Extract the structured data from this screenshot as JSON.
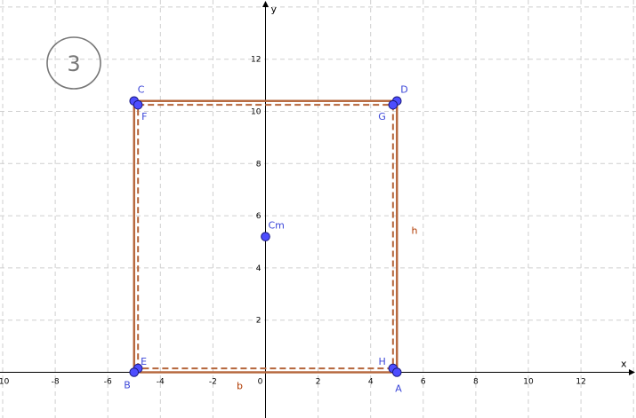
{
  "step_label": "3",
  "axes": {
    "x_label": "x",
    "y_label": "y",
    "x_ticks": [
      "-10",
      "-8",
      "-6",
      "-4",
      "-2",
      "0",
      "2",
      "4",
      "6",
      "8",
      "10",
      "12"
    ],
    "y_ticks": [
      "2",
      "4",
      "6",
      "8",
      "10",
      "12"
    ]
  },
  "colors": {
    "rect_stroke": "#b5653a",
    "point_fill": "#4d4dff",
    "point_label": "#3b46d8",
    "segment_label": "#b03a00"
  },
  "outer_rect": {
    "x": [
      -5,
      5
    ],
    "y": [
      0,
      10.4
    ]
  },
  "inner_rect": {
    "x": [
      -4.85,
      4.85
    ],
    "y": [
      0.15,
      10.25
    ]
  },
  "points": [
    {
      "name": "C",
      "x": -5,
      "y": 10.4
    },
    {
      "name": "F",
      "x": -4.85,
      "y": 10.25
    },
    {
      "name": "D",
      "x": 5,
      "y": 10.4
    },
    {
      "name": "G",
      "x": 4.85,
      "y": 10.25
    },
    {
      "name": "E",
      "x": -4.85,
      "y": 0.15
    },
    {
      "name": "B",
      "x": -5,
      "y": 0
    },
    {
      "name": "H",
      "x": 4.85,
      "y": 0.15
    },
    {
      "name": "A",
      "x": 5,
      "y": 0
    },
    {
      "name": "Cm",
      "x": 0,
      "y": 5.2
    }
  ],
  "segment_labels": {
    "bottom": "b",
    "right": "h"
  }
}
